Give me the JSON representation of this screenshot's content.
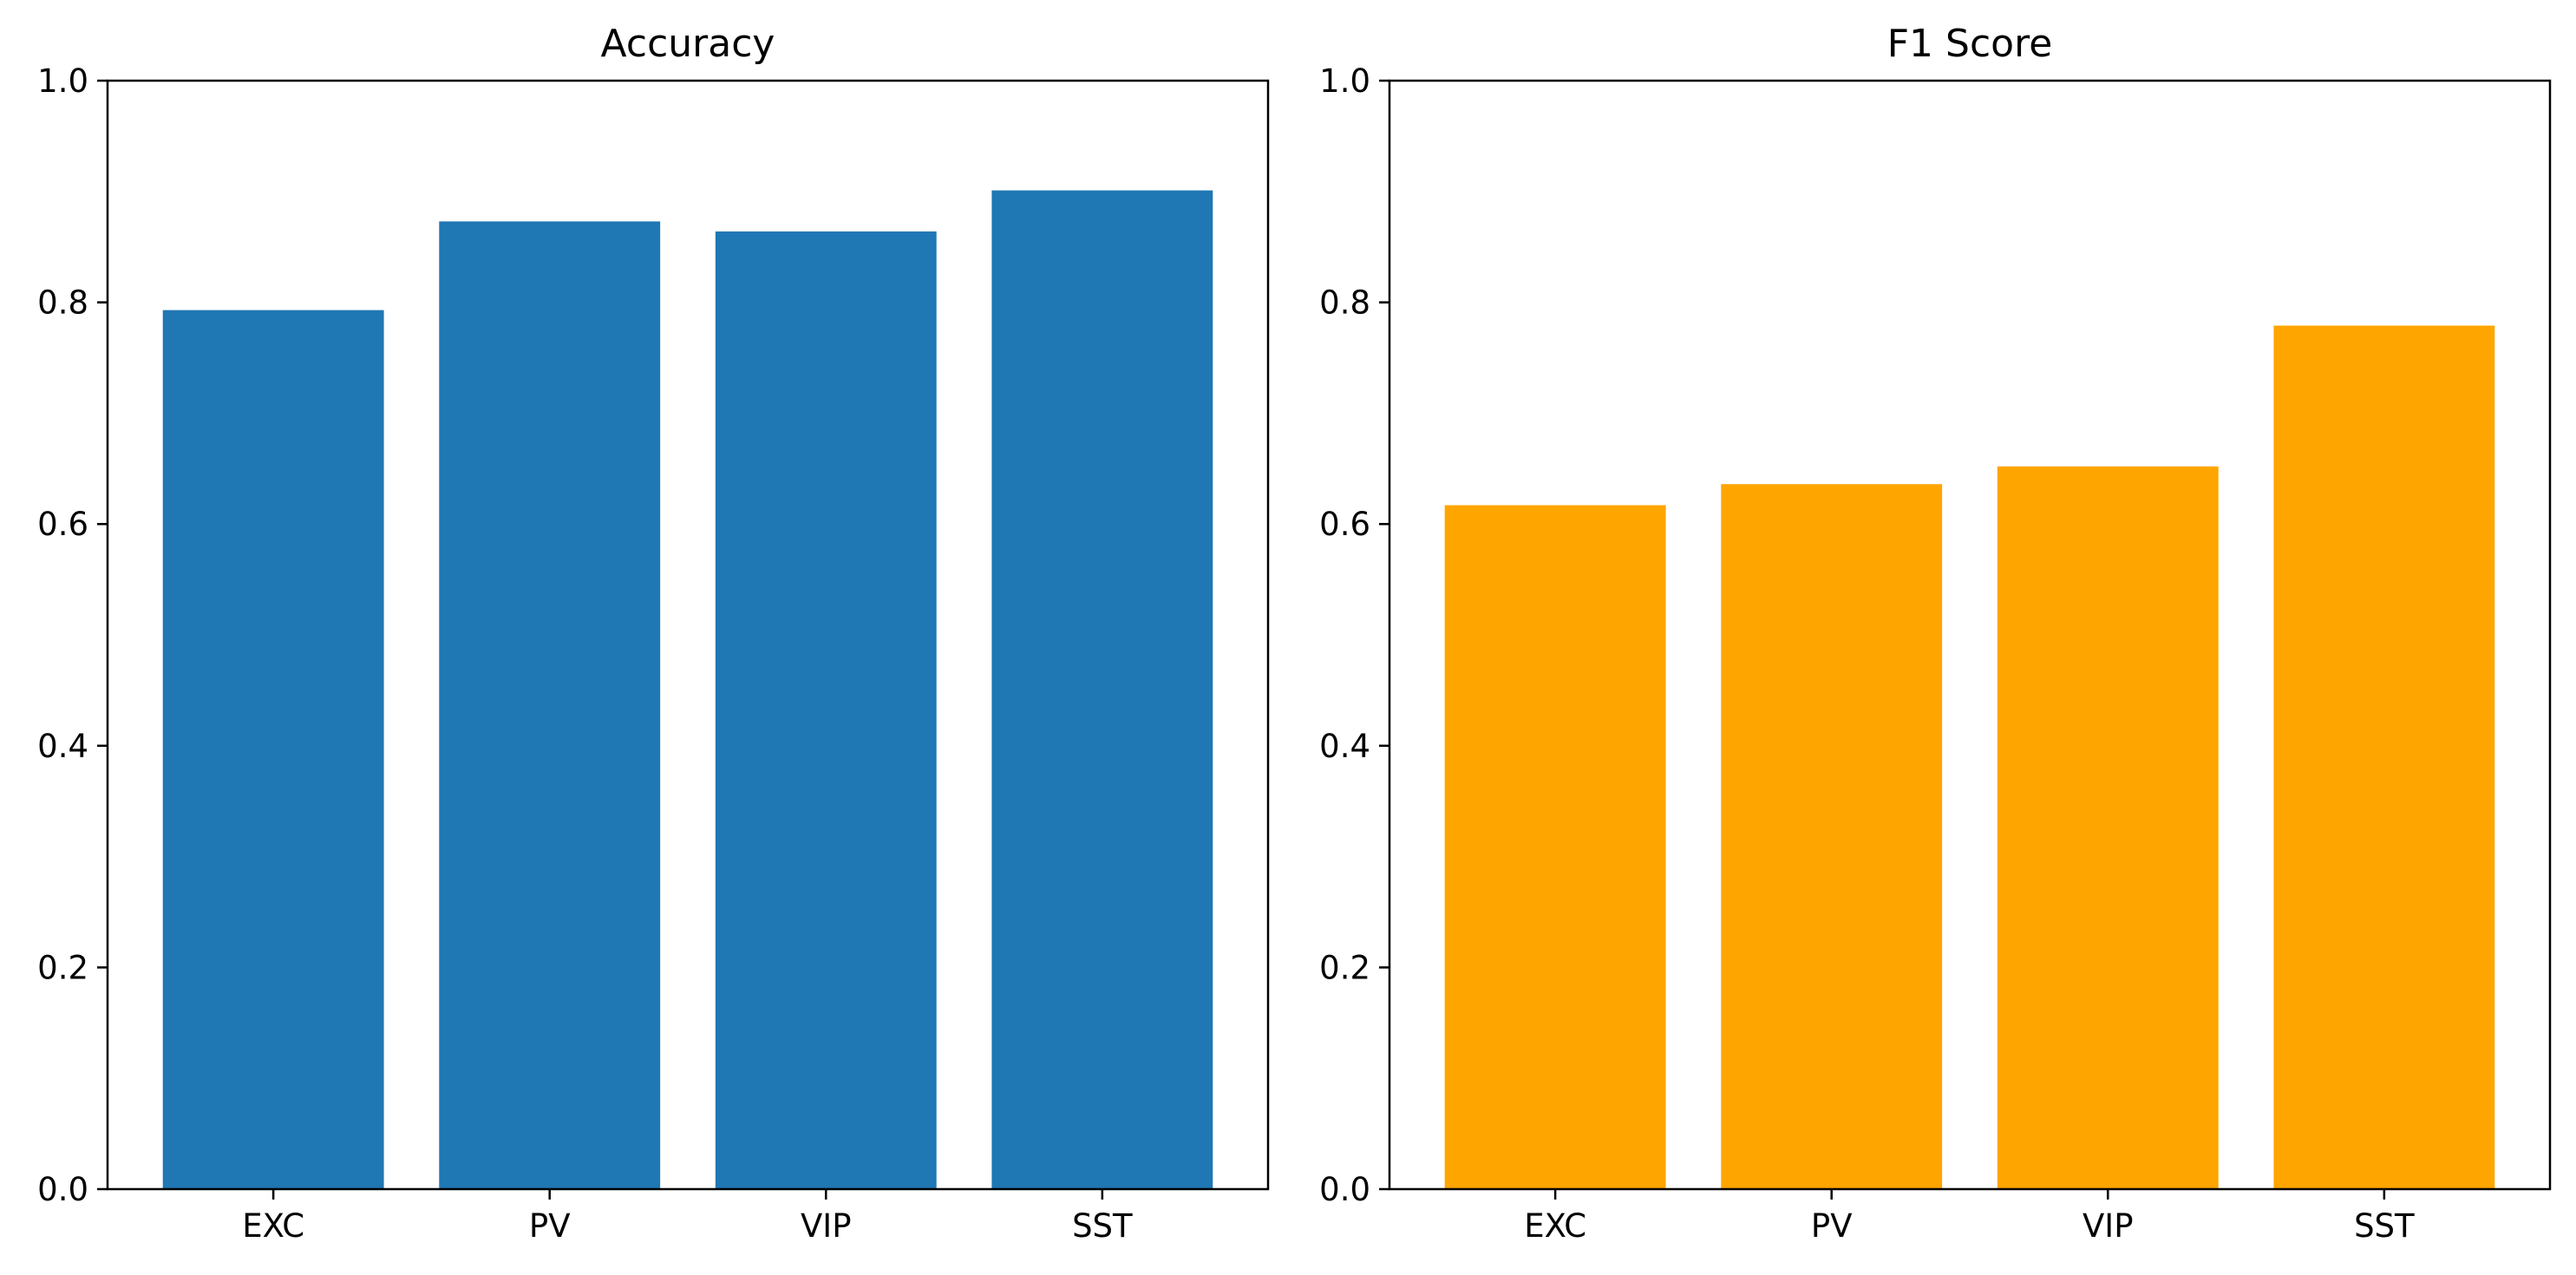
{
  "chart_data": [
    {
      "type": "bar",
      "title": "Accuracy",
      "xlabel": "",
      "ylabel": "",
      "categories": [
        "EXC",
        "PV",
        "VIP",
        "SST"
      ],
      "values": [
        0.793,
        0.873,
        0.864,
        0.901
      ],
      "ylim": [
        0,
        1
      ],
      "yticks": [
        0.0,
        0.2,
        0.4,
        0.6,
        0.8,
        1.0
      ],
      "ytick_labels": [
        "0.0",
        "0.2",
        "0.4",
        "0.6",
        "0.8",
        "1.0"
      ],
      "color": "#1f77b4",
      "grid": false
    },
    {
      "type": "bar",
      "title": "F1 Score",
      "xlabel": "",
      "ylabel": "",
      "categories": [
        "EXC",
        "PV",
        "VIP",
        "SST"
      ],
      "values": [
        0.617,
        0.636,
        0.652,
        0.779
      ],
      "ylim": [
        0,
        1
      ],
      "yticks": [
        0.0,
        0.2,
        0.4,
        0.6,
        0.8,
        1.0
      ],
      "ytick_labels": [
        "0.0",
        "0.2",
        "0.4",
        "0.6",
        "0.8",
        "1.0"
      ],
      "color": "#ffa500",
      "grid": false
    }
  ]
}
